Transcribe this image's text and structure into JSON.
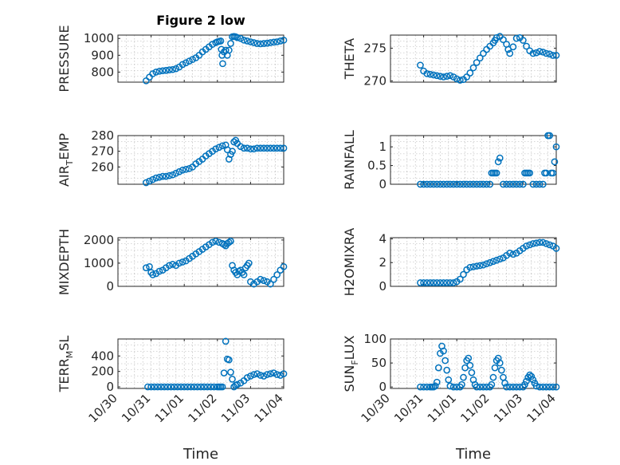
{
  "figure_title": "Figure 2 low",
  "colors": {
    "marker": "#0072BD",
    "axis": "#262626",
    "grid": "#b0b0b0"
  },
  "xaxis": {
    "label": "Time",
    "ticks": [
      {
        "value": 0,
        "label": "10/30"
      },
      {
        "value": 1,
        "label": "10/31"
      },
      {
        "value": 2,
        "label": "11/01"
      },
      {
        "value": 3,
        "label": "11/02"
      },
      {
        "value": 4,
        "label": "11/03"
      },
      {
        "value": 5,
        "label": "11/04"
      }
    ],
    "xlim": [
      0,
      5
    ]
  },
  "chart_data": [
    {
      "type": "scatter",
      "ylabel": "PRESSURE",
      "ylim": [
        740,
        1020
      ],
      "grid": true,
      "yticks": [
        800,
        900,
        1000
      ],
      "x": [
        0.85,
        0.95,
        1.05,
        1.15,
        1.25,
        1.35,
        1.45,
        1.55,
        1.65,
        1.75,
        1.85,
        1.95,
        2.05,
        2.15,
        2.25,
        2.35,
        2.45,
        2.55,
        2.65,
        2.75,
        2.85,
        2.95,
        3.0,
        3.05,
        3.1,
        3.12,
        3.14,
        3.16,
        3.2,
        3.25,
        3.3,
        3.35,
        3.4,
        3.45,
        3.5,
        3.55,
        3.6,
        3.7,
        3.8,
        3.9,
        4.0,
        4.1,
        4.2,
        4.3,
        4.4,
        4.5,
        4.6,
        4.7,
        4.8,
        4.9,
        5.0
      ],
      "y": [
        748,
        770,
        790,
        800,
        805,
        808,
        810,
        813,
        815,
        820,
        830,
        845,
        855,
        865,
        875,
        885,
        900,
        920,
        935,
        950,
        965,
        975,
        980,
        983,
        985,
        935,
        900,
        850,
        920,
        930,
        900,
        930,
        970,
        1010,
        1012,
        1010,
        1005,
        1000,
        990,
        985,
        980,
        975,
        970,
        968,
        970,
        972,
        975,
        978,
        980,
        985,
        990
      ]
    },
    {
      "type": "scatter",
      "ylabel": "THETA",
      "ylim": [
        269.8,
        277
      ],
      "grid": true,
      "yticks": [
        270,
        275
      ],
      "x": [
        0.9,
        1.0,
        1.1,
        1.2,
        1.3,
        1.4,
        1.5,
        1.6,
        1.7,
        1.8,
        1.9,
        2.0,
        2.1,
        2.2,
        2.3,
        2.4,
        2.5,
        2.6,
        2.7,
        2.8,
        2.9,
        3.0,
        3.1,
        3.15,
        3.2,
        3.3,
        3.4,
        3.5,
        3.55,
        3.6,
        3.7,
        3.8,
        3.9,
        4.0,
        4.1,
        4.2,
        4.3,
        4.4,
        4.5,
        4.6,
        4.7,
        4.8,
        4.9,
        5.0
      ],
      "y": [
        272.4,
        271.5,
        271.1,
        271.0,
        270.9,
        270.8,
        270.7,
        270.6,
        270.7,
        270.8,
        270.6,
        270.3,
        270.1,
        270.2,
        270.6,
        271.2,
        272.0,
        272.8,
        273.5,
        274.2,
        274.8,
        275.3,
        275.8,
        276.2,
        276.6,
        276.8,
        276.3,
        275.6,
        274.8,
        274.2,
        275.2,
        276.5,
        276.6,
        276.2,
        275.3,
        274.6,
        274.2,
        274.3,
        274.5,
        274.4,
        274.2,
        274.1,
        273.9,
        273.9
      ]
    },
    {
      "type": "scatter",
      "ylabel": "AIR_TEMP",
      "ylim": [
        249,
        280
      ],
      "grid": true,
      "yticks": [
        260,
        270,
        280
      ],
      "x": [
        0.85,
        0.95,
        1.05,
        1.15,
        1.25,
        1.35,
        1.45,
        1.55,
        1.65,
        1.75,
        1.85,
        1.95,
        2.05,
        2.15,
        2.25,
        2.35,
        2.45,
        2.55,
        2.65,
        2.75,
        2.85,
        2.95,
        3.05,
        3.15,
        3.25,
        3.3,
        3.35,
        3.4,
        3.45,
        3.5,
        3.55,
        3.6,
        3.7,
        3.8,
        3.9,
        4.0,
        4.1,
        4.2,
        4.3,
        4.4,
        4.5,
        4.6,
        4.7,
        4.8,
        4.9,
        5.0
      ],
      "y": [
        250,
        251,
        252,
        253,
        253.5,
        254,
        254,
        254.5,
        255,
        256,
        257,
        258,
        258.5,
        259,
        260,
        262,
        263.5,
        265,
        267,
        268.5,
        270,
        271.5,
        272.5,
        273.5,
        274,
        271,
        265,
        268,
        270,
        276,
        277,
        275,
        273,
        272,
        272,
        271.5,
        271.5,
        272,
        272,
        272,
        272,
        272,
        272,
        272,
        272,
        272
      ]
    },
    {
      "type": "scatter",
      "ylabel": "RAINFALL",
      "ylim": [
        0,
        1.3
      ],
      "grid": true,
      "yticks": [
        0,
        0.5,
        1
      ],
      "x": [
        0.9,
        1.0,
        1.1,
        1.2,
        1.3,
        1.4,
        1.5,
        1.6,
        1.7,
        1.8,
        1.9,
        2.0,
        2.1,
        2.2,
        2.3,
        2.4,
        2.5,
        2.6,
        2.7,
        2.8,
        2.9,
        3.0,
        3.05,
        3.1,
        3.15,
        3.2,
        3.25,
        3.3,
        3.4,
        3.5,
        3.6,
        3.7,
        3.8,
        3.9,
        4.0,
        4.05,
        4.1,
        4.15,
        4.2,
        4.3,
        4.4,
        4.5,
        4.6,
        4.65,
        4.7,
        4.75,
        4.8,
        4.85,
        4.9,
        4.95,
        5.0
      ],
      "y": [
        0,
        0,
        0,
        0,
        0,
        0,
        0,
        0,
        0,
        0,
        0,
        0,
        0,
        0,
        0,
        0,
        0,
        0,
        0,
        0,
        0,
        0,
        0.3,
        0.3,
        0.3,
        0.3,
        0.6,
        0.7,
        0,
        0,
        0,
        0,
        0,
        0,
        0,
        0.3,
        0.3,
        0.3,
        0.3,
        0,
        0,
        0,
        0,
        0.3,
        0.3,
        1.3,
        1.3,
        0.3,
        0.3,
        0.6,
        1.0
      ]
    },
    {
      "type": "scatter",
      "ylabel": "MIXDEPTH",
      "ylim": [
        0,
        2100
      ],
      "grid": true,
      "yticks": [
        0,
        1000,
        2000
      ],
      "x": [
        0.85,
        0.95,
        1.0,
        1.05,
        1.15,
        1.25,
        1.35,
        1.45,
        1.55,
        1.65,
        1.75,
        1.85,
        1.95,
        2.05,
        2.15,
        2.25,
        2.35,
        2.45,
        2.55,
        2.65,
        2.75,
        2.85,
        2.95,
        3.05,
        3.15,
        3.2,
        3.25,
        3.3,
        3.35,
        3.4,
        3.45,
        3.5,
        3.55,
        3.6,
        3.65,
        3.7,
        3.75,
        3.8,
        3.85,
        3.9,
        3.95,
        4.0,
        4.1,
        4.2,
        4.3,
        4.4,
        4.5,
        4.6,
        4.7,
        4.8,
        4.9,
        5.0
      ],
      "y": [
        800,
        850,
        600,
        500,
        550,
        650,
        700,
        800,
        900,
        950,
        900,
        1000,
        1050,
        1100,
        1200,
        1300,
        1400,
        1500,
        1600,
        1700,
        1800,
        1900,
        1950,
        1900,
        1850,
        1800,
        1750,
        1850,
        1900,
        1950,
        900,
        700,
        600,
        500,
        650,
        700,
        600,
        500,
        800,
        900,
        1000,
        200,
        100,
        200,
        300,
        250,
        200,
        100,
        300,
        500,
        700,
        850
      ]
    },
    {
      "type": "scatter",
      "ylabel": "H2OMIXRA",
      "ylim": [
        0,
        4.1
      ],
      "grid": true,
      "yticks": [
        0,
        2,
        4
      ],
      "x": [
        0.9,
        1.0,
        1.1,
        1.2,
        1.3,
        1.4,
        1.5,
        1.6,
        1.7,
        1.8,
        1.9,
        2.0,
        2.1,
        2.2,
        2.3,
        2.4,
        2.5,
        2.6,
        2.7,
        2.8,
        2.9,
        3.0,
        3.1,
        3.2,
        3.3,
        3.4,
        3.5,
        3.6,
        3.7,
        3.8,
        3.9,
        4.0,
        4.1,
        4.2,
        4.3,
        4.4,
        4.5,
        4.6,
        4.7,
        4.8,
        4.9,
        5.0
      ],
      "y": [
        0.3,
        0.3,
        0.3,
        0.3,
        0.3,
        0.3,
        0.3,
        0.3,
        0.3,
        0.3,
        0.3,
        0.4,
        0.6,
        1.0,
        1.4,
        1.6,
        1.65,
        1.7,
        1.75,
        1.8,
        1.9,
        2.0,
        2.1,
        2.2,
        2.3,
        2.4,
        2.6,
        2.8,
        2.7,
        2.8,
        3.0,
        3.2,
        3.4,
        3.5,
        3.6,
        3.65,
        3.7,
        3.7,
        3.6,
        3.5,
        3.4,
        3.2
      ]
    },
    {
      "type": "scatter",
      "ylabel": "TERR_MSL",
      "ylim": [
        -20,
        620
      ],
      "grid": true,
      "yticks": [
        0,
        200,
        400
      ],
      "x": [
        0.9,
        1.0,
        1.1,
        1.2,
        1.3,
        1.4,
        1.5,
        1.6,
        1.7,
        1.8,
        1.9,
        2.0,
        2.1,
        2.2,
        2.3,
        2.4,
        2.5,
        2.6,
        2.7,
        2.8,
        2.9,
        3.0,
        3.05,
        3.1,
        3.15,
        3.2,
        3.25,
        3.3,
        3.35,
        3.4,
        3.45,
        3.5,
        3.55,
        3.6,
        3.7,
        3.8,
        3.9,
        4.0,
        4.1,
        4.2,
        4.3,
        4.4,
        4.5,
        4.6,
        4.7,
        4.8,
        4.9,
        5.0
      ],
      "y": [
        0,
        0,
        0,
        0,
        0,
        0,
        0,
        0,
        0,
        0,
        0,
        0,
        0,
        0,
        0,
        0,
        0,
        0,
        0,
        0,
        0,
        0,
        0,
        0,
        0,
        180,
        590,
        360,
        350,
        190,
        100,
        0,
        20,
        30,
        50,
        80,
        120,
        140,
        160,
        170,
        150,
        140,
        160,
        170,
        180,
        160,
        150,
        170
      ]
    },
    {
      "type": "scatter",
      "ylabel": "SUN_FLUX",
      "ylim": [
        -3,
        100
      ],
      "grid": true,
      "yticks": [
        0,
        50,
        100
      ],
      "x": [
        0.9,
        1.0,
        1.1,
        1.2,
        1.25,
        1.3,
        1.35,
        1.4,
        1.45,
        1.5,
        1.55,
        1.6,
        1.65,
        1.7,
        1.75,
        1.8,
        1.9,
        2.0,
        2.1,
        2.15,
        2.2,
        2.25,
        2.3,
        2.35,
        2.4,
        2.45,
        2.5,
        2.55,
        2.6,
        2.7,
        2.8,
        2.9,
        3.0,
        3.05,
        3.1,
        3.15,
        3.2,
        3.25,
        3.3,
        3.35,
        3.4,
        3.45,
        3.5,
        3.6,
        3.7,
        3.8,
        3.9,
        4.0,
        4.05,
        4.1,
        4.15,
        4.2,
        4.25,
        4.3,
        4.35,
        4.4,
        4.5,
        4.6,
        4.7,
        4.8,
        4.9,
        5.0
      ],
      "y": [
        0,
        0,
        0,
        0,
        0,
        0,
        2,
        10,
        40,
        70,
        85,
        75,
        55,
        35,
        15,
        2,
        0,
        0,
        0,
        5,
        20,
        40,
        55,
        60,
        45,
        30,
        15,
        5,
        0,
        0,
        0,
        0,
        0,
        5,
        20,
        40,
        55,
        60,
        50,
        35,
        20,
        8,
        0,
        0,
        0,
        0,
        0,
        0,
        5,
        12,
        20,
        25,
        22,
        15,
        8,
        2,
        0,
        0,
        0,
        0,
        0,
        0
      ]
    }
  ]
}
